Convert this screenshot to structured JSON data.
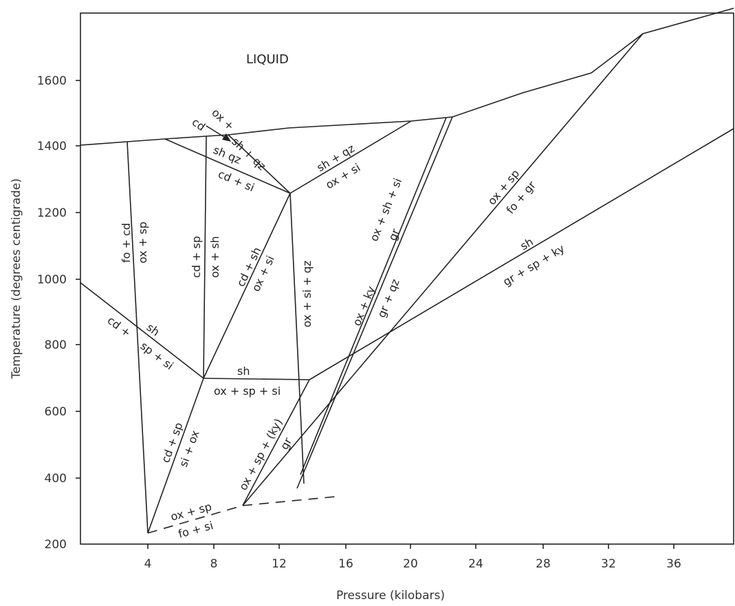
{
  "chart_data": {
    "type": "phase-diagram",
    "xlabel": "Pressure (kilobars)",
    "ylabel": "Temperature (degrees centigrade)",
    "x_ticks": [
      "4",
      "8",
      "12",
      "16",
      "20",
      "24",
      "28",
      "32",
      "36"
    ],
    "y_ticks": [
      "1600",
      "1400",
      "1200",
      "1000",
      "800",
      "600",
      "400",
      "200"
    ],
    "region_labels": {
      "liquid": "LIQUID",
      "cd_arrow": "cd",
      "ox_plus": "ox +",
      "sh_qz_top": "sh + qz",
      "sh_qz": "sh qz",
      "cd_si": "cd + si",
      "sh_qz_right": "sh + qz",
      "ox_si_right": "ox + si",
      "fo_cd": "fo + cd",
      "ox_sp_left": "ox + sp",
      "cd_sp": "cd + sp",
      "ox_sh": "ox + sh",
      "cd_sh": "cd + sh",
      "ox_si_mid": "ox + si",
      "ox_si_qz": "ox + si + qz",
      "ox_sh_si": "ox + sh + si",
      "gr_upper": "gr",
      "ox_ky": "ox + ky",
      "gr_qz": "gr + qz",
      "ox_sp_fo_gr": "ox + sp",
      "fo_gr": "fo + gr",
      "sh_right": "sh",
      "gr_sp_ky": "gr + sp + ky",
      "cd_plus": "cd +",
      "sh_left": "sh",
      "sp_si": "sp + si",
      "sh_mid": "sh",
      "ox_sp_si": "ox + sp + si",
      "cd_sp_low": "cd + sp",
      "si_ox": "si + ox",
      "ox_sp_ky": "ox + sp + (ky)",
      "gr_low": "gr",
      "ox_sp_bottom": "ox + sp",
      "fo_si": "fo + si"
    }
  }
}
